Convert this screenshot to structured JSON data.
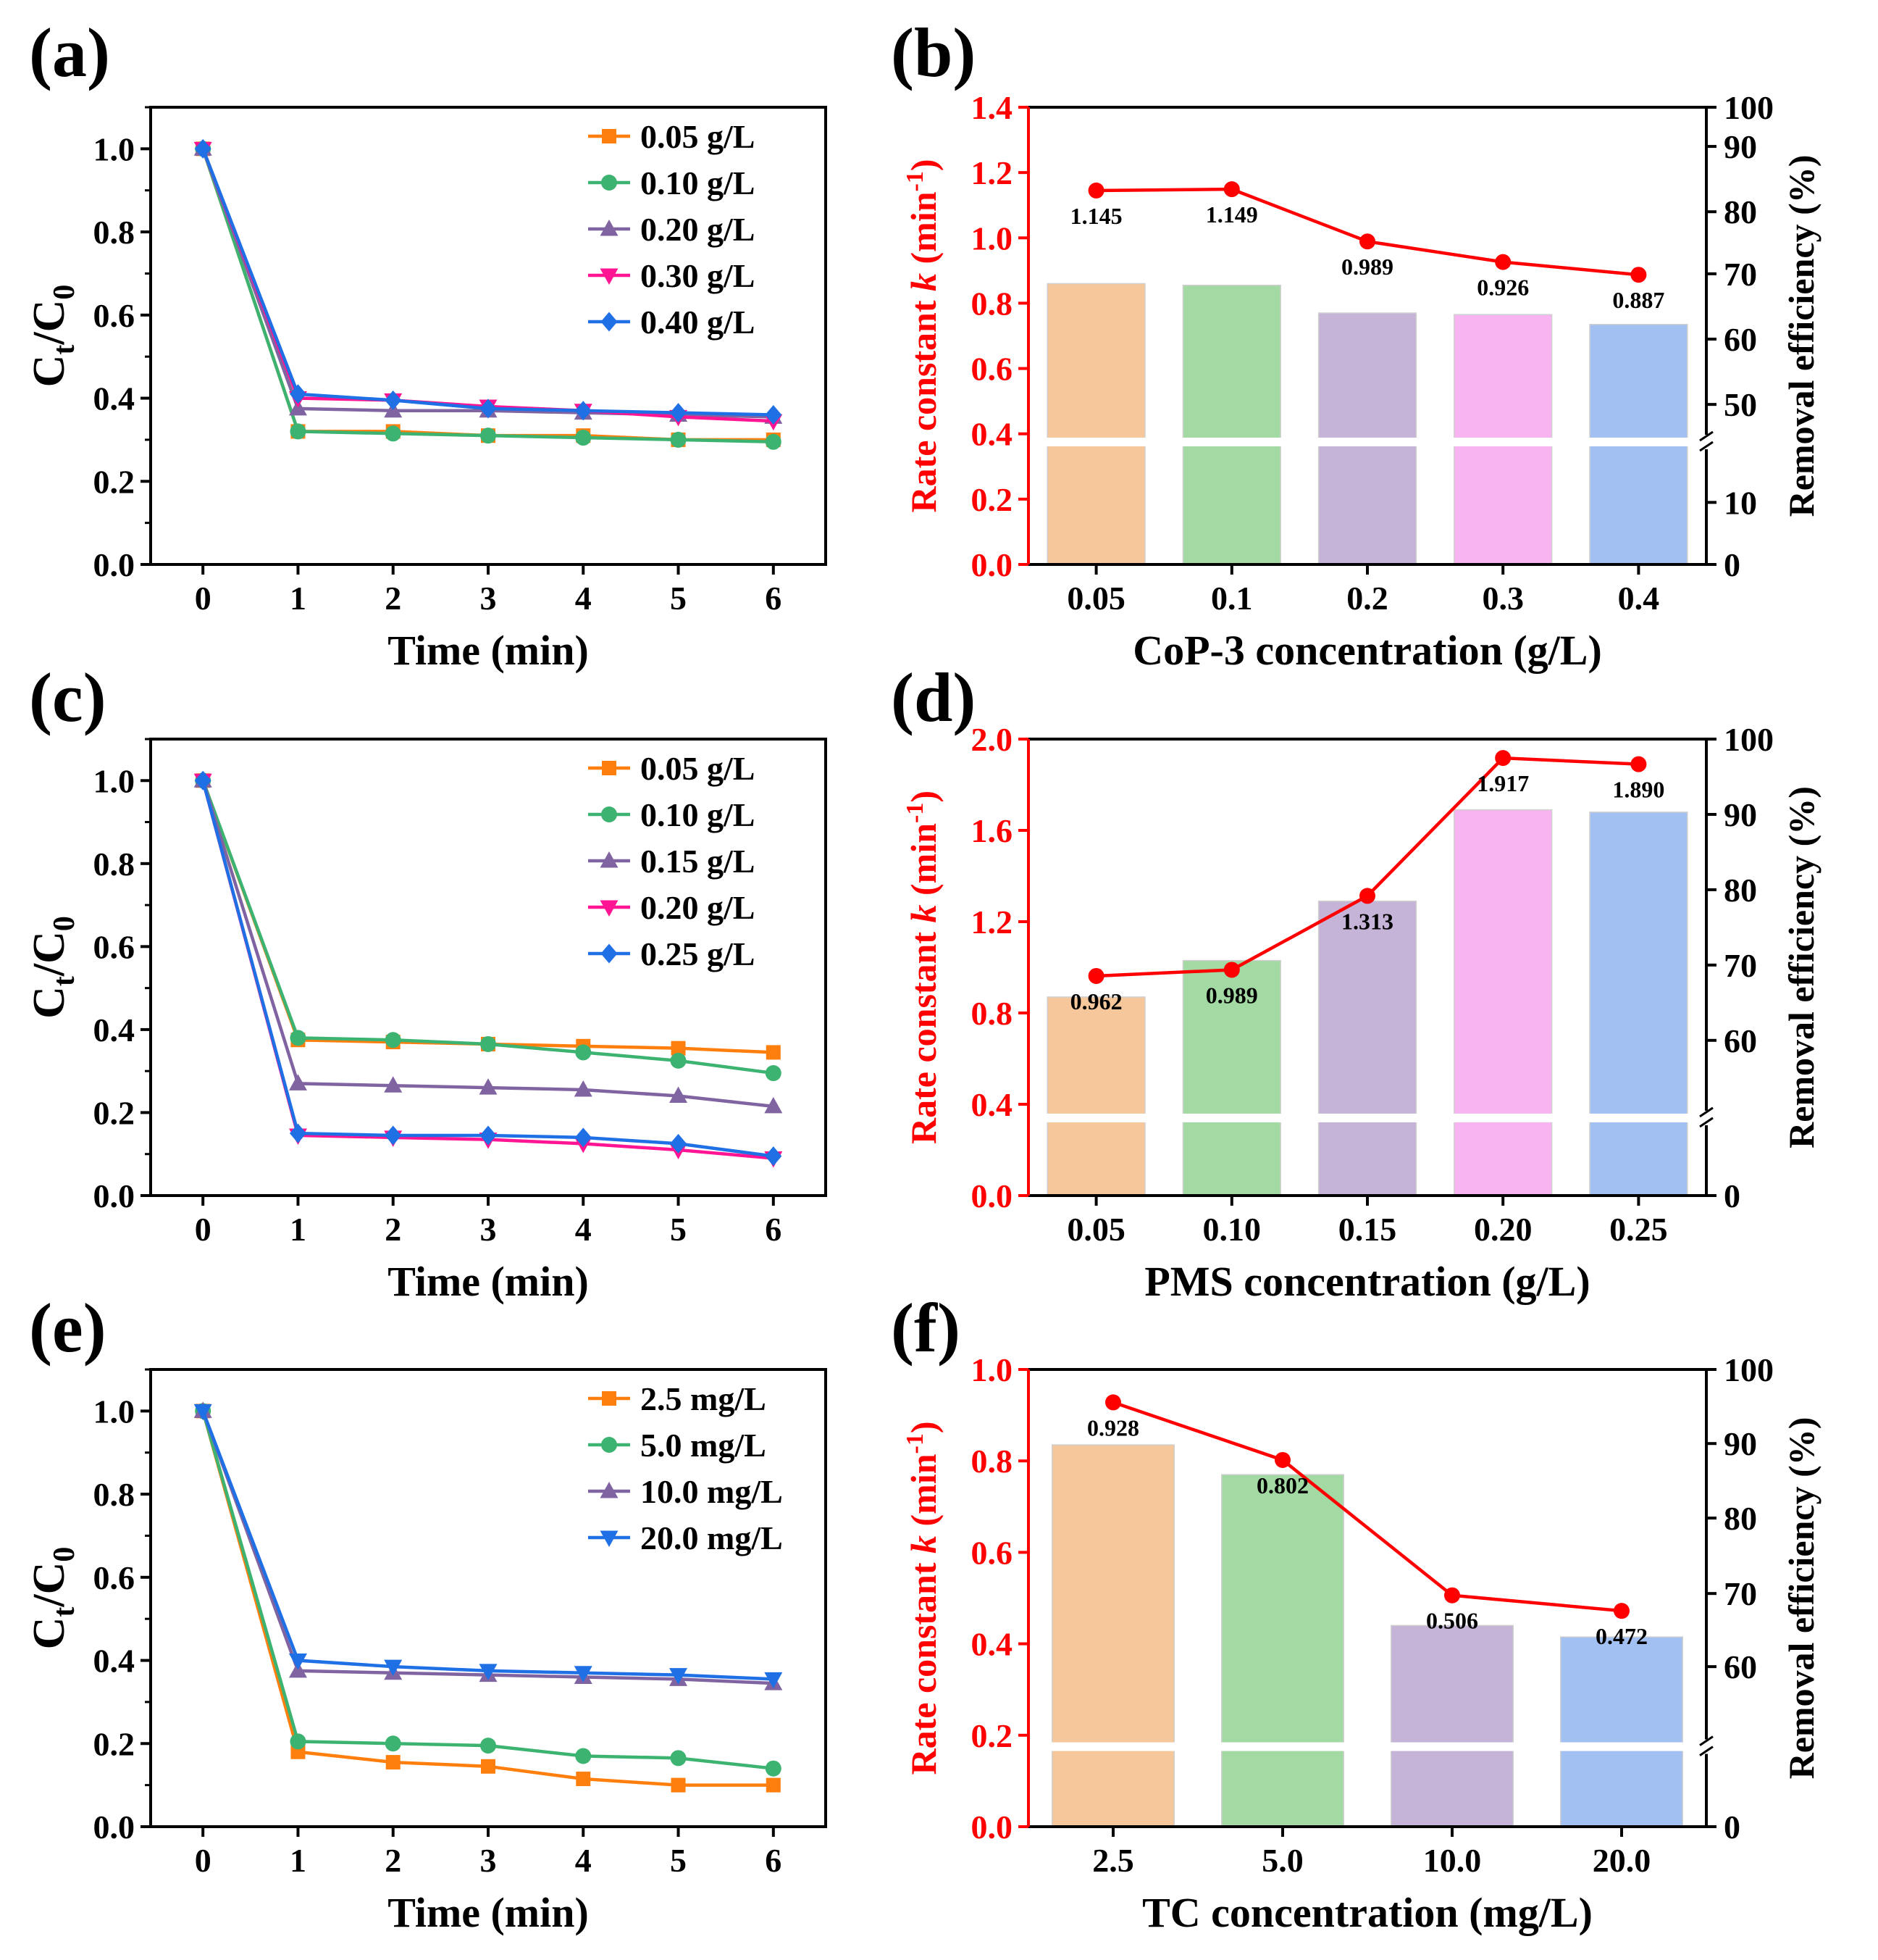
{
  "figure": {
    "colors": {
      "axis": "#000000",
      "rate": "#ff0000",
      "marker_rate": "#ff0000"
    }
  },
  "chart_data": [
    {
      "id": "a",
      "panel_label": "(a)",
      "type": "line",
      "xlabel": "Time (min)",
      "ylabel": "Ct/C0",
      "x": [
        0,
        1,
        2,
        3,
        4,
        5,
        6
      ],
      "xlim": [
        -0.55,
        6.55
      ],
      "ylim": [
        0.0,
        1.1
      ],
      "xticks": [
        0,
        1,
        2,
        3,
        4,
        5,
        6
      ],
      "yticks": [
        0.0,
        0.2,
        0.4,
        0.6,
        0.8,
        1.0
      ],
      "legend_position": "top-right",
      "series": [
        {
          "name": "0.05 g/L",
          "color": "#ff7f0e",
          "marker": "square",
          "values": [
            1.0,
            0.32,
            0.32,
            0.31,
            0.31,
            0.3,
            0.3
          ]
        },
        {
          "name": "0.10 g/L",
          "color": "#3cb371",
          "marker": "circle",
          "values": [
            1.0,
            0.32,
            0.315,
            0.31,
            0.305,
            0.3,
            0.295
          ]
        },
        {
          "name": "0.20 g/L",
          "color": "#8064a2",
          "marker": "triangle-up",
          "values": [
            1.0,
            0.375,
            0.37,
            0.37,
            0.365,
            0.36,
            0.355
          ]
        },
        {
          "name": "0.30 g/L",
          "color": "#ff1493",
          "marker": "triangle-down",
          "values": [
            1.0,
            0.4,
            0.395,
            0.38,
            0.37,
            0.355,
            0.345
          ]
        },
        {
          "name": "0.40 g/L",
          "color": "#1f6fe5",
          "marker": "diamond",
          "values": [
            1.0,
            0.41,
            0.395,
            0.375,
            0.37,
            0.365,
            0.36
          ]
        }
      ]
    },
    {
      "id": "b",
      "panel_label": "(b)",
      "type": "bar",
      "xlabel": "CoP-3 concentration (g/L)",
      "ylabel_left": "Rate constant k (min-1)",
      "ylabel_right": "Removal efficiency (%)",
      "categories": [
        "0.05",
        "0.1",
        "0.2",
        "0.3",
        "0.4"
      ],
      "bar_colors": [
        "#f5c79b",
        "#a3d9a3",
        "#c5b4d7",
        "#f8b4f0",
        "#a2c1f2"
      ],
      "left_ylim": [
        0.0,
        1.4
      ],
      "left_yticks": [
        0.0,
        0.2,
        0.4,
        0.6,
        0.8,
        1.0,
        1.2,
        1.4
      ],
      "right_tick_labels": [
        "0",
        "10",
        "50",
        "60",
        "70",
        "80",
        "90",
        "100"
      ],
      "right_tick_at_left_value": [
        0.0,
        0.19,
        0.49,
        0.69,
        0.89,
        1.08,
        1.28,
        1.4
      ],
      "right_break_at_left_value": 0.375,
      "bar_break_at_left_value": 0.375,
      "removal_efficiency_bar_tops_left_scale": [
        0.86,
        0.855,
        0.77,
        0.765,
        0.735
      ],
      "rate_constants": [
        1.145,
        1.149,
        0.989,
        0.926,
        0.887
      ],
      "rate_labels": [
        "1.145",
        "1.149",
        "0.989",
        "0.926",
        "0.887"
      ],
      "rate_label_side": [
        "below",
        "below",
        "below",
        "below",
        "below"
      ]
    },
    {
      "id": "c",
      "panel_label": "(c)",
      "type": "line",
      "xlabel": "Time (min)",
      "ylabel": "Ct/C0",
      "x": [
        0,
        1,
        2,
        3,
        4,
        5,
        6
      ],
      "xlim": [
        -0.55,
        6.55
      ],
      "ylim": [
        0.0,
        1.1
      ],
      "xticks": [
        0,
        1,
        2,
        3,
        4,
        5,
        6
      ],
      "yticks": [
        0.0,
        0.2,
        0.4,
        0.6,
        0.8,
        1.0
      ],
      "legend_position": "top-right",
      "series": [
        {
          "name": "0.05 g/L",
          "color": "#ff7f0e",
          "marker": "square",
          "values": [
            1.0,
            0.375,
            0.37,
            0.365,
            0.36,
            0.355,
            0.345
          ]
        },
        {
          "name": "0.10 g/L",
          "color": "#3cb371",
          "marker": "circle",
          "values": [
            1.0,
            0.38,
            0.375,
            0.365,
            0.345,
            0.325,
            0.295
          ]
        },
        {
          "name": "0.15 g/L",
          "color": "#8064a2",
          "marker": "triangle-up",
          "values": [
            1.0,
            0.27,
            0.265,
            0.26,
            0.255,
            0.24,
            0.215
          ]
        },
        {
          "name": "0.20 g/L",
          "color": "#ff1493",
          "marker": "triangle-down",
          "values": [
            1.0,
            0.145,
            0.14,
            0.135,
            0.125,
            0.11,
            0.09
          ]
        },
        {
          "name": "0.25 g/L",
          "color": "#1f6fe5",
          "marker": "diamond",
          "values": [
            1.0,
            0.15,
            0.145,
            0.145,
            0.14,
            0.125,
            0.095
          ]
        }
      ]
    },
    {
      "id": "d",
      "panel_label": "(d)",
      "type": "bar",
      "xlabel": "PMS concentration (g/L)",
      "ylabel_left": "Rate constant k (min-1)",
      "ylabel_right": "Removal efficiency (%)",
      "categories": [
        "0.05",
        "0.10",
        "0.15",
        "0.20",
        "0.25"
      ],
      "bar_colors": [
        "#f5c79b",
        "#a3d9a3",
        "#c5b4d7",
        "#f8b4f0",
        "#a2c1f2"
      ],
      "left_ylim": [
        0.0,
        2.0
      ],
      "left_yticks": [
        0.0,
        0.4,
        0.8,
        1.2,
        1.6,
        2.0
      ],
      "right_tick_labels": [
        "0",
        "60",
        "70",
        "80",
        "90",
        "100"
      ],
      "right_tick_at_left_value": [
        0.0,
        0.68,
        1.01,
        1.34,
        1.67,
        2.0
      ],
      "right_break_at_left_value": 0.34,
      "bar_break_at_left_value": 0.34,
      "removal_efficiency_bar_tops_left_scale": [
        0.87,
        1.03,
        1.29,
        1.69,
        1.68
      ],
      "rate_constants": [
        0.962,
        0.989,
        1.313,
        1.917,
        1.89
      ],
      "rate_labels": [
        "0.962",
        "0.989",
        "1.313",
        "1.917",
        "1.890"
      ],
      "rate_label_side": [
        "below",
        "below",
        "below",
        "below",
        "below"
      ]
    },
    {
      "id": "e",
      "panel_label": "(e)",
      "type": "line",
      "xlabel": "Time (min)",
      "ylabel": "Ct/C0",
      "x": [
        0,
        1,
        2,
        3,
        4,
        5,
        6
      ],
      "xlim": [
        -0.55,
        6.55
      ],
      "ylim": [
        0.0,
        1.1
      ],
      "xticks": [
        0,
        1,
        2,
        3,
        4,
        5,
        6
      ],
      "yticks": [
        0.0,
        0.2,
        0.4,
        0.6,
        0.8,
        1.0
      ],
      "legend_position": "top-right",
      "series": [
        {
          "name": "2.5 mg/L",
          "color": "#ff7f0e",
          "marker": "square",
          "values": [
            1.0,
            0.18,
            0.155,
            0.145,
            0.115,
            0.1,
            0.1
          ]
        },
        {
          "name": "5.0 mg/L",
          "color": "#3cb371",
          "marker": "circle",
          "values": [
            1.0,
            0.205,
            0.2,
            0.195,
            0.17,
            0.165,
            0.14
          ]
        },
        {
          "name": "10.0 mg/L",
          "color": "#8064a2",
          "marker": "triangle-up",
          "values": [
            1.0,
            0.375,
            0.37,
            0.365,
            0.36,
            0.355,
            0.345
          ]
        },
        {
          "name": "20.0 mg/L",
          "color": "#1f6fe5",
          "marker": "triangle-down",
          "values": [
            1.0,
            0.4,
            0.385,
            0.375,
            0.37,
            0.365,
            0.355
          ]
        }
      ]
    },
    {
      "id": "f",
      "panel_label": "(f)",
      "type": "bar",
      "xlabel": "TC concentration (mg/L)",
      "ylabel_left": "Rate constant k (min-1)",
      "ylabel_right": "Removal efficiency (%)",
      "categories": [
        "2.5",
        "5.0",
        "10.0",
        "20.0"
      ],
      "bar_colors": [
        "#f5c79b",
        "#a3d9a3",
        "#c5b4d7",
        "#a2c1f2"
      ],
      "left_ylim": [
        0.0,
        1.0
      ],
      "left_yticks": [
        0.0,
        0.2,
        0.4,
        0.6,
        0.8,
        1.0
      ],
      "right_tick_labels": [
        "0",
        "60",
        "70",
        "80",
        "90",
        "100"
      ],
      "right_tick_at_left_value": [
        0.0,
        0.35,
        0.51,
        0.675,
        0.838,
        1.0
      ],
      "right_break_at_left_value": 0.175,
      "bar_break_at_left_value": 0.175,
      "removal_efficiency_bar_tops_left_scale": [
        0.835,
        0.77,
        0.44,
        0.415
      ],
      "rate_constants": [
        0.928,
        0.802,
        0.506,
        0.472
      ],
      "rate_labels": [
        "0.928",
        "0.802",
        "0.506",
        "0.472"
      ],
      "rate_label_side": [
        "below",
        "below",
        "below",
        "below"
      ]
    }
  ]
}
